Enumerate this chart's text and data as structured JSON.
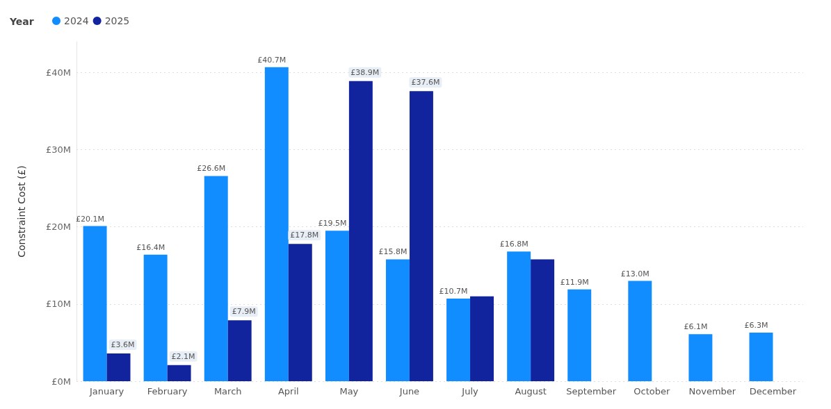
{
  "chart_data": {
    "type": "bar",
    "ylabel": "Constraint Cost (£)",
    "legend_title": "Year",
    "legend": "top left",
    "grid": "y",
    "categories": [
      "January",
      "February",
      "March",
      "April",
      "May",
      "June",
      "July",
      "August",
      "September",
      "October",
      "November",
      "December"
    ],
    "ylim": [
      0,
      44
    ],
    "yticks": [
      {
        "value": 0,
        "label": "£0M"
      },
      {
        "value": 10,
        "label": "£10M"
      },
      {
        "value": 20,
        "label": "£20M"
      },
      {
        "value": 30,
        "label": "£30M"
      },
      {
        "value": 40,
        "label": "£40M"
      }
    ],
    "series": [
      {
        "name": "2024",
        "color": "#118dff",
        "values": [
          20.1,
          16.4,
          26.6,
          40.7,
          19.5,
          15.8,
          10.7,
          16.8,
          11.9,
          13.0,
          6.1,
          6.3
        ],
        "value_labels": [
          "£20.1M",
          "£16.4M",
          "£26.6M",
          "£40.7M",
          "£19.5M",
          "£15.8M",
          "£10.7M",
          "£16.8M",
          "£11.9M",
          "£13.0M",
          "£6.1M",
          "£6.3M"
        ]
      },
      {
        "name": "2025",
        "color": "#12239e",
        "values": [
          3.6,
          2.1,
          7.9,
          17.8,
          38.9,
          37.6,
          11.0,
          15.8,
          null,
          null,
          null,
          null
        ],
        "value_labels": [
          "£3.6M",
          "£2.1M",
          "£7.9M",
          "£17.8M",
          "£38.9M",
          "£37.6M",
          null,
          null,
          null,
          null,
          null,
          null
        ]
      }
    ]
  }
}
